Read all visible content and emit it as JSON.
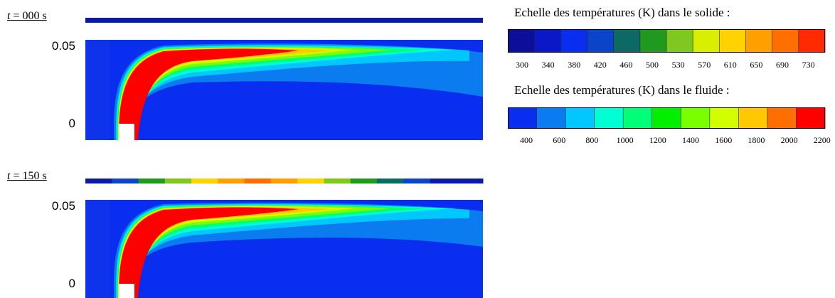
{
  "panels": [
    {
      "time_label_t": "t",
      "time_label_rest": " = 000 s",
      "ytick_top": "0.05",
      "ytick_bottom": "0"
    },
    {
      "time_label_t": "t",
      "time_label_rest": " = 150 s",
      "ytick_top": "0.05",
      "ytick_bottom": "0"
    }
  ],
  "legend_solid": {
    "title": "Echelle des températures (K) dans le solide :",
    "values": [
      "300",
      "340",
      "380",
      "420",
      "460",
      "500",
      "530",
      "570",
      "610",
      "650",
      "690",
      "730"
    ],
    "colors": [
      "#0b0f9a",
      "#0a18c8",
      "#0a2ef0",
      "#0a44c8",
      "#0b6b64",
      "#1f9a1f",
      "#7fc81f",
      "#d8ef00",
      "#ffd200",
      "#ffa000",
      "#ff6e00",
      "#ff2a00"
    ]
  },
  "legend_fluid": {
    "title": "Echelle des températures (K) dans le fluide :",
    "values": [
      "400",
      "600",
      "800",
      "1000",
      "1200",
      "1400",
      "1600",
      "1800",
      "2000",
      "2200"
    ],
    "colors": [
      "#0a2ef0",
      "#0a7cf0",
      "#00c8ff",
      "#00ffd2",
      "#00ff78",
      "#00f000",
      "#78ff00",
      "#d2ff00",
      "#ffc800",
      "#ff6e00",
      "#ff0000"
    ]
  },
  "wall_strip_top": {
    "colors": [
      "#0a1aa8"
    ]
  },
  "wall_strip_bottom": {
    "colors": [
      "#0a1aa8",
      "#0a44c8",
      "#1f9a1f",
      "#7fc81f",
      "#ffd200",
      "#ffa000",
      "#ff6e00",
      "#ffa000",
      "#ffd200",
      "#7fc81f",
      "#1f9a1f",
      "#0b6b64",
      "#0a44c8",
      "#0a1aa8",
      "#0a1aa8"
    ]
  }
}
